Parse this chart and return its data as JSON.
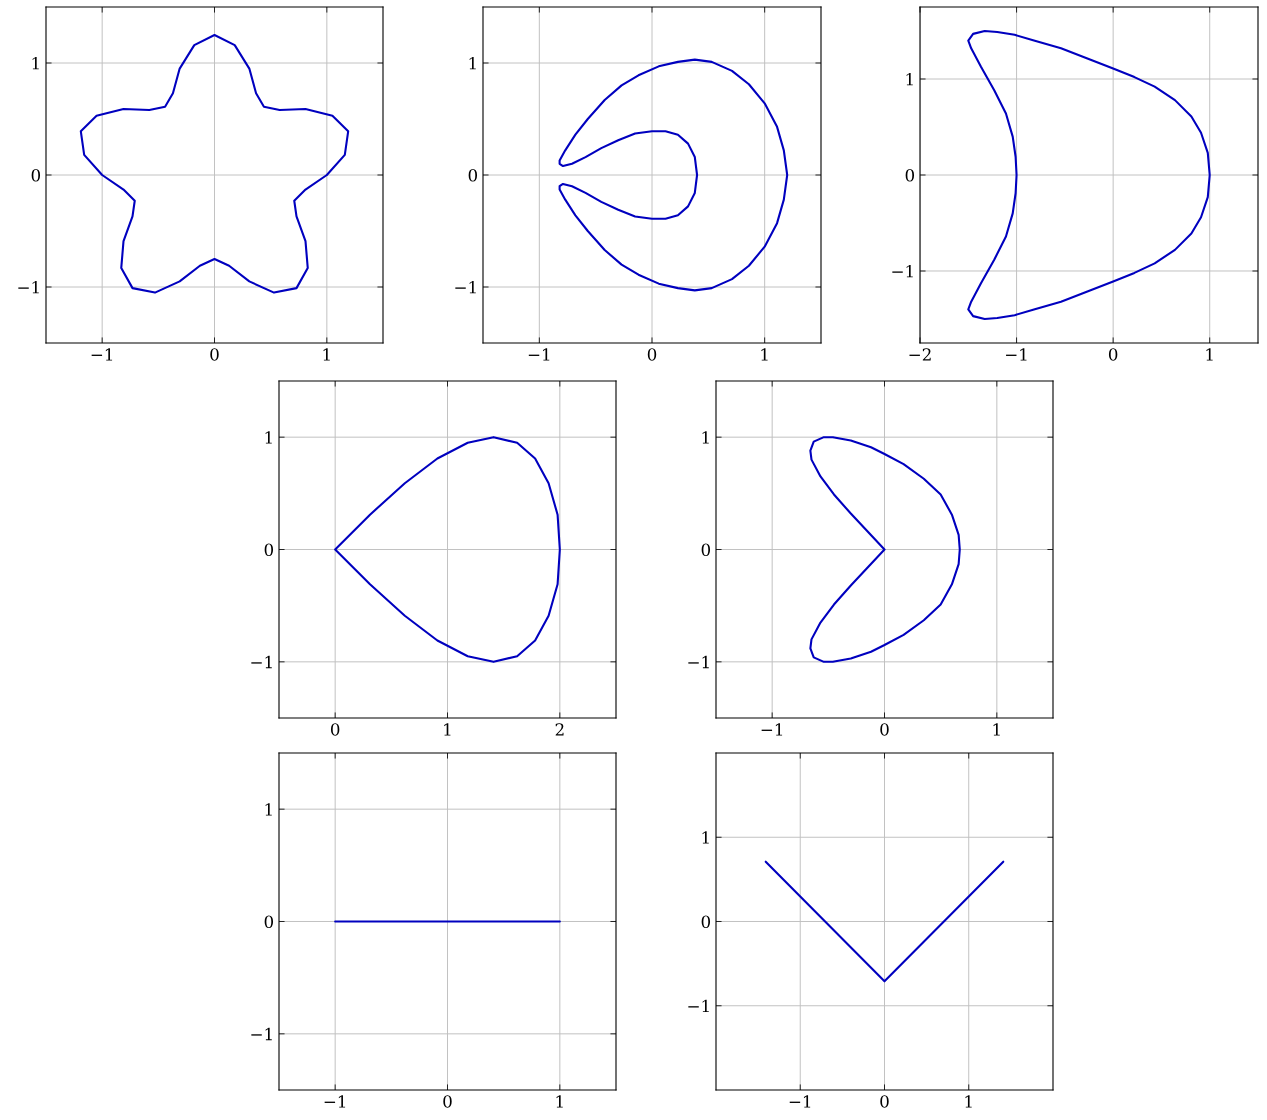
{
  "chart_data": [
    {
      "type": "line",
      "grid": true,
      "xlim": [
        -1.5,
        1.5
      ],
      "ylim": [
        -1.5,
        1.5
      ],
      "xticks": [
        -1,
        0,
        1
      ],
      "yticks": [
        -1,
        0,
        1
      ],
      "series": [
        {
          "type": "line",
          "color": "#0000bf",
          "x": [
            1.0,
            1.16,
            1.19,
            1.05,
            0.81,
            0.58,
            0.44,
            0.37,
            0.31,
            0.18,
            0,
            -0.18,
            -0.31,
            -0.37,
            -0.44,
            -0.58,
            -0.81,
            -1.05,
            -1.19,
            -1.16,
            -1.0,
            -0.81,
            -0.71,
            -0.73,
            -0.81,
            -0.83,
            -0.73,
            -0.53,
            -0.31,
            -0.13,
            0,
            0.13,
            0.31,
            0.53,
            0.73,
            0.83,
            0.81,
            0.73,
            0.71,
            0.81,
            1.0,
            1.16
          ],
          "values": [
            0,
            0.18,
            0.39,
            0.53,
            0.59,
            0.58,
            0.61,
            0.73,
            0.95,
            1.16,
            1.25,
            1.16,
            0.95,
            0.73,
            0.61,
            0.58,
            0.59,
            0.53,
            0.39,
            0.18,
            0,
            -0.13,
            -0.23,
            -0.37,
            -0.59,
            -0.83,
            -1.01,
            -1.05,
            -0.95,
            -0.81,
            -0.75,
            -0.81,
            -0.95,
            -1.05,
            -1.01,
            -0.83,
            -0.59,
            -0.37,
            -0.23,
            -0.13,
            0,
            0.18
          ]
        }
      ]
    },
    {
      "type": "line",
      "grid": true,
      "xlim": [
        -1.5,
        1.5
      ],
      "ylim": [
        -1.5,
        1.5
      ],
      "xticks": [
        -1,
        0,
        1
      ],
      "yticks": [
        -1,
        0,
        1
      ],
      "series": [
        {
          "type": "line",
          "color": "#0000bf",
          "x": [
            1.2,
            1.17,
            1.11,
            1.0,
            0.86,
            0.71,
            0.53,
            0.38,
            0.23,
            0.06,
            -0.12,
            -0.27,
            -0.42,
            -0.57,
            -0.68,
            -0.77,
            -0.82,
            -0.82,
            -0.79,
            -0.71,
            -0.59,
            -0.45,
            -0.3,
            -0.15,
            0,
            0.12,
            0.23,
            0.32,
            0.38,
            0.4,
            0.38,
            0.32,
            0.23,
            0.12,
            0,
            -0.15,
            -0.3,
            -0.45,
            -0.59,
            -0.71,
            -0.79,
            -0.82,
            -0.82,
            -0.77,
            -0.68,
            -0.57,
            -0.42,
            -0.27,
            -0.12,
            0.06,
            0.23,
            0.38,
            0.53,
            0.71,
            0.86,
            1.0,
            1.11,
            1.17,
            1.2,
            1.17
          ],
          "values": [
            0,
            0.22,
            0.43,
            0.64,
            0.81,
            0.93,
            1.01,
            1.03,
            1.01,
            0.97,
            0.89,
            0.8,
            0.67,
            0.5,
            0.36,
            0.22,
            0.13,
            0.1,
            0.08,
            0.1,
            0.16,
            0.24,
            0.31,
            0.37,
            0.39,
            0.39,
            0.36,
            0.28,
            0.16,
            0,
            -0.16,
            -0.28,
            -0.36,
            -0.39,
            -0.39,
            -0.37,
            -0.31,
            -0.24,
            -0.16,
            -0.1,
            -0.08,
            -0.1,
            -0.13,
            -0.22,
            -0.36,
            -0.5,
            -0.67,
            -0.8,
            -0.89,
            -0.97,
            -1.01,
            -1.03,
            -1.01,
            -0.93,
            -0.81,
            -0.64,
            -0.43,
            -0.22,
            0,
            0.22
          ]
        }
      ]
    },
    {
      "type": "line",
      "grid": true,
      "xlim": [
        -2,
        1.5
      ],
      "ylim": [
        -1.75,
        1.75
      ],
      "xticks": [
        -2,
        -1,
        0,
        1
      ],
      "yticks": [
        -1,
        0,
        1
      ],
      "series": [
        {
          "type": "line",
          "color": "#0000bf",
          "x": [
            1.0,
            0.98,
            0.91,
            0.81,
            0.64,
            0.43,
            0.22,
            0,
            -0.26,
            -0.54,
            -0.82,
            -1.02,
            -1.2,
            -1.33,
            -1.45,
            -1.5,
            -1.47,
            -1.37,
            -1.23,
            -1.11,
            -1.04,
            -1.01,
            -1.0,
            -1.01,
            -1.04,
            -1.11,
            -1.23,
            -1.37,
            -1.47,
            -1.5,
            -1.45,
            -1.33,
            -1.2,
            -1.02,
            -0.82,
            -0.54,
            -0.26,
            0,
            0.22,
            0.43,
            0.64,
            0.81,
            0.91,
            0.98,
            1.0,
            0.98
          ],
          "values": [
            0,
            0.23,
            0.44,
            0.61,
            0.78,
            0.92,
            1.02,
            1.11,
            1.21,
            1.32,
            1.4,
            1.46,
            1.49,
            1.5,
            1.47,
            1.4,
            1.32,
            1.13,
            0.88,
            0.64,
            0.4,
            0.19,
            0,
            -0.19,
            -0.4,
            -0.64,
            -0.88,
            -1.13,
            -1.32,
            -1.4,
            -1.47,
            -1.5,
            -1.49,
            -1.46,
            -1.4,
            -1.32,
            -1.21,
            -1.11,
            -1.02,
            -0.92,
            -0.78,
            -0.61,
            -0.44,
            -0.23,
            0,
            0.23
          ]
        }
      ]
    },
    {
      "type": "line",
      "grid": true,
      "xlim": [
        -0.5,
        2.5
      ],
      "ylim": [
        -1.5,
        1.5
      ],
      "xticks": [
        0,
        1,
        2
      ],
      "yticks": [
        -1,
        0,
        1
      ],
      "series": [
        {
          "type": "line",
          "color": "#0000bf",
          "x": [
            0,
            0.31,
            0.62,
            0.91,
            1.18,
            1.41,
            1.62,
            1.78,
            1.9,
            1.98,
            2.0,
            1.98,
            1.9,
            1.78,
            1.62,
            1.41,
            1.18,
            0.91,
            0.62,
            0.31,
            0,
            0.31
          ],
          "values": [
            0,
            0.31,
            0.59,
            0.81,
            0.95,
            1.0,
            0.95,
            0.81,
            0.59,
            0.31,
            0,
            -0.31,
            -0.59,
            -0.81,
            -0.95,
            -1.0,
            -0.95,
            -0.81,
            -0.59,
            -0.31,
            0,
            0.31
          ]
        }
      ]
    },
    {
      "type": "line",
      "grid": true,
      "xlim": [
        -1.5,
        1.5
      ],
      "ylim": [
        -1.5,
        1.5
      ],
      "xticks": [
        -1,
        0,
        1
      ],
      "yticks": [
        -1,
        0,
        1
      ],
      "series": [
        {
          "type": "line",
          "color": "#0000bf",
          "x": [
            0,
            -0.15,
            -0.3,
            -0.45,
            -0.57,
            -0.65,
            -0.66,
            -0.63,
            -0.54,
            -0.46,
            -0.3,
            -0.12,
            0,
            0.17,
            0.35,
            0.5,
            0.6,
            0.66,
            0.67,
            0.66,
            0.6,
            0.5,
            0.35,
            0.17,
            0,
            -0.12,
            -0.3,
            -0.46,
            -0.54,
            -0.63,
            -0.66,
            -0.65,
            -0.57,
            -0.45,
            -0.3,
            -0.15,
            0,
            -0.15
          ],
          "values": [
            0,
            0.16,
            0.32,
            0.49,
            0.65,
            0.8,
            0.88,
            0.96,
            1.0,
            1.0,
            0.97,
            0.91,
            0.85,
            0.76,
            0.63,
            0.49,
            0.31,
            0.13,
            0,
            -0.13,
            -0.31,
            -0.49,
            -0.63,
            -0.76,
            -0.85,
            -0.91,
            -0.97,
            -1.0,
            -1.0,
            -0.96,
            -0.88,
            -0.8,
            -0.65,
            -0.49,
            -0.32,
            -0.16,
            0,
            0.16
          ]
        }
      ]
    },
    {
      "type": "line",
      "color": "#0000bf",
      "grid": true,
      "xlim": [
        -1.5,
        1.5
      ],
      "ylim": [
        -1.5,
        1.5
      ],
      "xticks": [
        -1,
        0,
        1
      ],
      "yticks": [
        -1,
        0,
        1
      ],
      "x": [
        -1,
        1
      ],
      "values": [
        0,
        0
      ]
    },
    {
      "type": "line",
      "color": "#0000bf",
      "grid": true,
      "xlim": [
        -2,
        2
      ],
      "ylim": [
        -2,
        2
      ],
      "xticks": [
        -1,
        0,
        1
      ],
      "yticks": [
        -1,
        0,
        1
      ],
      "x": [
        -1.41,
        0,
        1.41
      ],
      "values": [
        0.71,
        -0.71,
        0.71
      ]
    }
  ]
}
